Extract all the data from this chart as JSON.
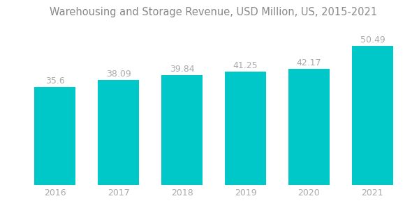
{
  "title": "Warehousing and Storage Revenue, USD Million, US, 2015-2021",
  "categories": [
    "2016",
    "2017",
    "2018",
    "2019",
    "2020",
    "2021"
  ],
  "values": [
    35.6,
    38.09,
    39.84,
    41.25,
    42.17,
    50.49
  ],
  "bar_color": "#00C8C8",
  "background_color": "#ffffff",
  "title_fontsize": 10.5,
  "label_fontsize": 9,
  "tick_fontsize": 9,
  "label_color": "#aaaaaa",
  "title_color": "#888888",
  "ylim": [
    0,
    58
  ],
  "bar_bottom": 0
}
